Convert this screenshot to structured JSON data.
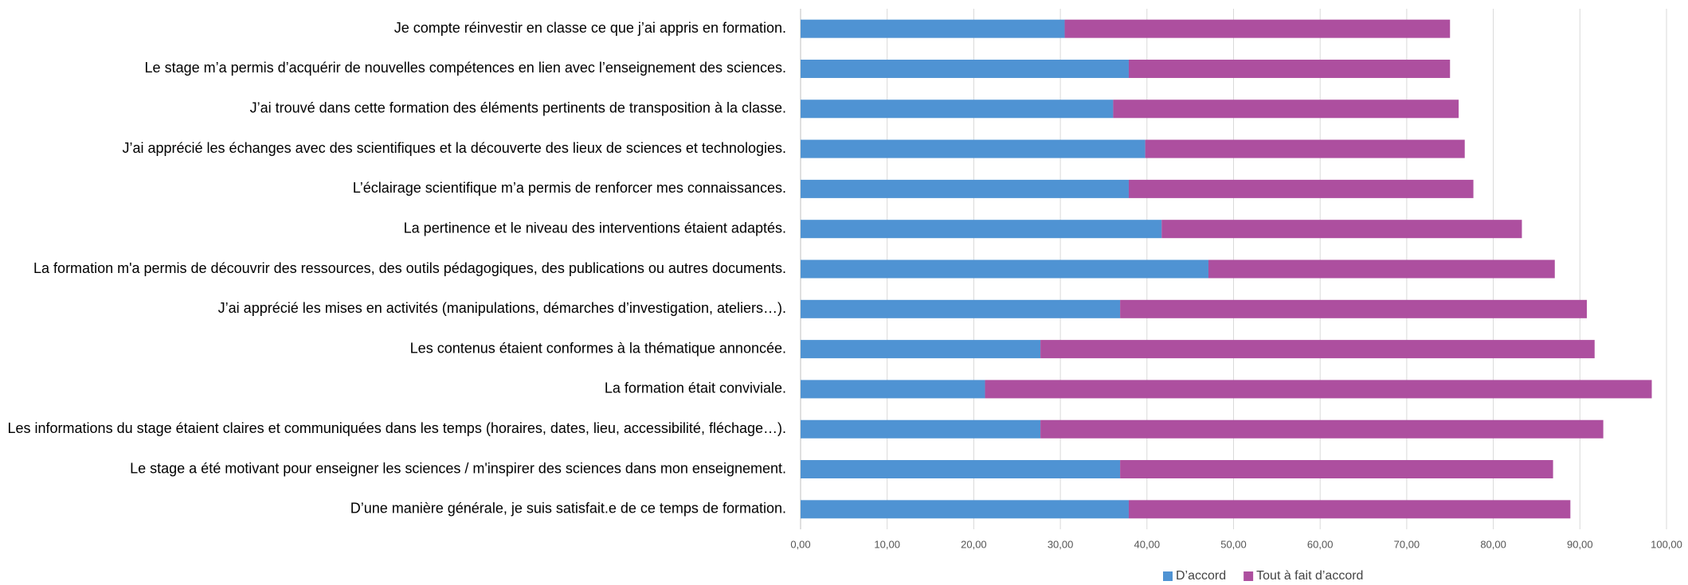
{
  "chart_data": {
    "type": "stacked-barh",
    "categories": [
      "Je compte réinvestir en classe ce que j’ai appris en formation.",
      "Le stage m’a permis d’acquérir de nouvelles compétences en lien avec l’enseignement des sciences.",
      "J’ai trouvé dans cette formation des éléments pertinents de transposition à la classe.",
      "J’ai apprécié les échanges avec des scientifiques et la découverte des lieux de sciences et technologies.",
      "L’éclairage scientifique m’a permis de renforcer mes connaissances.",
      "La pertinence et le niveau des interventions étaient adaptés.",
      "La formation m'a permis de découvrir des ressources, des outils pédagogiques, des publications ou autres documents.",
      "J’ai apprécié les mises en activités (manipulations, démarches d’investigation, ateliers…).",
      "Les contenus étaient conformes à la thématique annoncée.",
      "La formation était conviviale.",
      "Les informations du stage étaient claires et communiquées dans les temps (horaires, dates, lieu, accessibilité, fléchage…).",
      "Le stage a été motivant pour enseigner les sciences / m'inspirer des sciences dans mon enseignement.",
      "D’une manière générale, je suis satisfait.e de ce temps de formation."
    ],
    "series": [
      {
        "name": "D’accord",
        "color": "#4f93d3",
        "values": [
          30.5,
          37.9,
          36.1,
          39.8,
          37.9,
          41.7,
          47.1,
          36.9,
          27.7,
          21.3,
          27.7,
          36.9,
          37.9
        ]
      },
      {
        "name": "Tout à fait d’accord",
        "color": "#ad4f9f",
        "values": [
          44.5,
          37.1,
          39.9,
          36.9,
          39.8,
          41.6,
          40.0,
          53.9,
          64.0,
          77.0,
          65.0,
          50.0,
          51.0
        ]
      }
    ],
    "xlim": [
      0,
      100
    ],
    "xticks": [
      {
        "value": 0,
        "label": "0,00"
      },
      {
        "value": 10,
        "label": "10,00"
      },
      {
        "value": 20,
        "label": "20,00"
      },
      {
        "value": 30,
        "label": "30,00"
      },
      {
        "value": 40,
        "label": "40,00"
      },
      {
        "value": 50,
        "label": "50,00"
      },
      {
        "value": 60,
        "label": "60,00"
      },
      {
        "value": 70,
        "label": "70,00"
      },
      {
        "value": 80,
        "label": "80,00"
      },
      {
        "value": 90,
        "label": "90,00"
      },
      {
        "value": 100,
        "label": "100,00"
      }
    ],
    "grid": true,
    "legend": "bottom"
  }
}
